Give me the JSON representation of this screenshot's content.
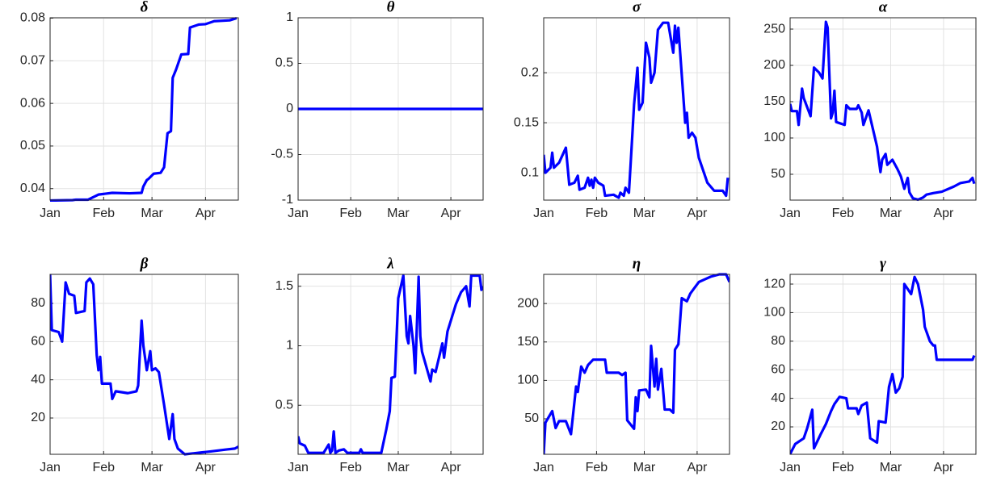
{
  "chart_data": [
    {
      "type": "line",
      "title": "δ",
      "color": "#0000ff",
      "grid": true,
      "xlim": [
        0,
        109
      ],
      "xticks": [
        {
          "value": 0,
          "label": "Jan"
        },
        {
          "value": 31,
          "label": "Feb"
        },
        {
          "value": 59,
          "label": "Mar"
        },
        {
          "value": 90,
          "label": "Apr"
        }
      ],
      "ylim": [
        0.0373,
        0.0801
      ],
      "yticks": [
        0.04,
        0.05,
        0.06,
        0.07,
        0.08
      ],
      "x": [
        0,
        13,
        15,
        22,
        25,
        28,
        32,
        36,
        46,
        53,
        54,
        56,
        57,
        60,
        64,
        66,
        68,
        70,
        71,
        73,
        76,
        80,
        81,
        86,
        90,
        95,
        100,
        104,
        108
      ],
      "values": [
        0.0372,
        0.0373,
        0.0374,
        0.0374,
        0.038,
        0.0386,
        0.0388,
        0.039,
        0.0389,
        0.039,
        0.0405,
        0.042,
        0.0423,
        0.0435,
        0.0437,
        0.045,
        0.053,
        0.0535,
        0.066,
        0.068,
        0.0715,
        0.0716,
        0.0778,
        0.0785,
        0.0786,
        0.0793,
        0.0794,
        0.0795,
        0.08
      ]
    },
    {
      "type": "line",
      "title": "θ",
      "color": "#0000ff",
      "grid": true,
      "xlim": [
        0,
        109
      ],
      "xticks": [
        {
          "value": 0,
          "label": "Jan"
        },
        {
          "value": 31,
          "label": "Feb"
        },
        {
          "value": 59,
          "label": "Mar"
        },
        {
          "value": 90,
          "label": "Apr"
        }
      ],
      "ylim": [
        -1,
        1
      ],
      "yticks": [
        -1,
        -0.5,
        0,
        0.5,
        1
      ],
      "x": [
        0,
        109
      ],
      "values": [
        0,
        0
      ]
    },
    {
      "type": "line",
      "title": "σ",
      "color": "#0000ff",
      "grid": true,
      "xlim": [
        0,
        109
      ],
      "xticks": [
        {
          "value": 0,
          "label": "Jan"
        },
        {
          "value": 31,
          "label": "Feb"
        },
        {
          "value": 59,
          "label": "Mar"
        },
        {
          "value": 90,
          "label": "Apr"
        }
      ],
      "ylim": [
        0.0726,
        0.255
      ],
      "yticks": [
        0.1,
        0.15,
        0.2
      ],
      "x": [
        0,
        1,
        4,
        5,
        6,
        9,
        13,
        15,
        18,
        20,
        21,
        24,
        26,
        27,
        28,
        29,
        30,
        32,
        35,
        36,
        41,
        44,
        45,
        47,
        48,
        50,
        52,
        53,
        55,
        56,
        58,
        60,
        62,
        63,
        65,
        67,
        70,
        73,
        74,
        76,
        77,
        78,
        79,
        83,
        84,
        85,
        87,
        89,
        91,
        94,
        96,
        100,
        105,
        107,
        108
      ],
      "values": [
        0.118,
        0.1,
        0.105,
        0.12,
        0.105,
        0.11,
        0.125,
        0.088,
        0.09,
        0.097,
        0.083,
        0.085,
        0.095,
        0.087,
        0.093,
        0.085,
        0.095,
        0.09,
        0.087,
        0.077,
        0.078,
        0.075,
        0.08,
        0.077,
        0.085,
        0.08,
        0.138,
        0.168,
        0.205,
        0.163,
        0.17,
        0.23,
        0.215,
        0.19,
        0.2,
        0.243,
        0.25,
        0.25,
        0.24,
        0.22,
        0.247,
        0.23,
        0.245,
        0.15,
        0.16,
        0.135,
        0.14,
        0.135,
        0.115,
        0.1,
        0.09,
        0.082,
        0.082,
        0.077,
        0.095
      ]
    },
    {
      "type": "line",
      "title": "α",
      "color": "#0000ff",
      "grid": true,
      "xlim": [
        0,
        109
      ],
      "xticks": [
        {
          "value": 0,
          "label": "Jan"
        },
        {
          "value": 31,
          "label": "Feb"
        },
        {
          "value": 59,
          "label": "Mar"
        },
        {
          "value": 90,
          "label": "Apr"
        }
      ],
      "ylim": [
        14.4,
        265.6
      ],
      "yticks": [
        50,
        100,
        150,
        200,
        250
      ],
      "x": [
        0,
        1,
        4,
        5,
        7,
        8,
        12,
        14,
        17,
        19,
        21,
        22,
        24,
        25,
        26,
        27,
        32,
        33,
        35,
        39,
        40,
        42,
        43,
        46,
        51,
        53,
        54,
        56,
        57,
        60,
        63,
        65,
        67,
        69,
        70,
        72,
        75,
        78,
        80,
        84,
        89,
        96,
        100,
        105,
        107,
        108
      ],
      "values": [
        147,
        137,
        137,
        118,
        168,
        155,
        130,
        197,
        190,
        182,
        260,
        252,
        127,
        135,
        165,
        122,
        118,
        145,
        140,
        140,
        145,
        135,
        118,
        138,
        88,
        53,
        70,
        78,
        63,
        70,
        57,
        47,
        30,
        45,
        25,
        17,
        15,
        18,
        22,
        24,
        26,
        33,
        38,
        40,
        45,
        37
      ]
    },
    {
      "type": "line",
      "title": "β",
      "color": "#0000ff",
      "grid": true,
      "xlim": [
        0,
        109
      ],
      "xticks": [
        {
          "value": 0,
          "label": "Jan"
        },
        {
          "value": 31,
          "label": "Feb"
        },
        {
          "value": 59,
          "label": "Mar"
        },
        {
          "value": 90,
          "label": "Apr"
        }
      ],
      "ylim": [
        1,
        95.2
      ],
      "yticks": [
        20,
        40,
        60,
        80
      ],
      "x": [
        0,
        1,
        5,
        7,
        9,
        11,
        14,
        15,
        20,
        21,
        23,
        25,
        27,
        28,
        29,
        30,
        35,
        36,
        38,
        45,
        50,
        51,
        53,
        54,
        56,
        58,
        59,
        61,
        63,
        66,
        69,
        71,
        72,
        74,
        78,
        83,
        88,
        93,
        102,
        107,
        109
      ],
      "values": [
        95,
        66,
        65,
        60,
        91,
        85,
        84,
        75,
        76,
        91,
        93,
        90,
        53,
        45,
        52,
        38,
        38,
        30,
        34,
        33,
        34,
        37,
        71,
        58,
        45,
        55,
        45,
        46,
        44,
        27,
        9,
        22,
        9,
        4,
        1,
        1.5,
        2,
        2.5,
        3.5,
        4,
        5
      ]
    },
    {
      "type": "line",
      "title": "λ",
      "color": "#0000ff",
      "grid": true,
      "xlim": [
        0,
        109
      ],
      "xticks": [
        {
          "value": 0,
          "label": "Jan"
        },
        {
          "value": 31,
          "label": "Feb"
        },
        {
          "value": 59,
          "label": "Mar"
        },
        {
          "value": 90,
          "label": "Apr"
        }
      ],
      "ylim": [
        0.088,
        1.6
      ],
      "yticks": [
        0.5,
        1,
        1.5
      ],
      "x": [
        0,
        1,
        4,
        6,
        15,
        18,
        19,
        20,
        21,
        22,
        24,
        27,
        29,
        36,
        37,
        38,
        49,
        52,
        54,
        55,
        57,
        59,
        62,
        64,
        65,
        66,
        68,
        69,
        71,
        72,
        73,
        78,
        79,
        81,
        85,
        86,
        88,
        93,
        96,
        99,
        101,
        102,
        107,
        108,
        109
      ],
      "values": [
        0.24,
        0.18,
        0.16,
        0.1,
        0.1,
        0.17,
        0.1,
        0.12,
        0.28,
        0.1,
        0.12,
        0.13,
        0.1,
        0.1,
        0.13,
        0.1,
        0.1,
        0.3,
        0.45,
        0.73,
        0.74,
        1.4,
        1.59,
        1.08,
        1.02,
        1.25,
        1.0,
        0.77,
        1.58,
        1.08,
        0.95,
        0.7,
        0.8,
        0.78,
        1.02,
        0.9,
        1.12,
        1.35,
        1.45,
        1.5,
        1.33,
        1.59,
        1.59,
        1.47,
        1.5
      ]
    },
    {
      "type": "line",
      "title": "η",
      "color": "#0000ff",
      "grid": true,
      "xlim": [
        0,
        109
      ],
      "xticks": [
        {
          "value": 0,
          "label": "Jan"
        },
        {
          "value": 31,
          "label": "Feb"
        },
        {
          "value": 59,
          "label": "Mar"
        },
        {
          "value": 90,
          "label": "Apr"
        }
      ],
      "ylim": [
        3.8,
        238
      ],
      "yticks": [
        50,
        100,
        150,
        200
      ],
      "x": [
        0,
        1,
        5,
        7,
        9,
        13,
        16,
        19,
        20,
        22,
        24,
        26,
        29,
        36,
        37,
        44,
        46,
        48,
        49,
        53,
        54,
        55,
        56,
        60,
        62,
        63,
        65,
        66,
        67,
        69,
        71,
        74,
        76,
        77,
        79,
        81,
        84,
        86,
        89,
        91,
        95,
        98,
        103,
        107,
        109
      ],
      "values": [
        4,
        45,
        60,
        38,
        47,
        47,
        30,
        92,
        85,
        118,
        110,
        120,
        127,
        127,
        110,
        110,
        107,
        110,
        48,
        37,
        78,
        60,
        87,
        88,
        78,
        145,
        92,
        128,
        88,
        115,
        62,
        62,
        58,
        140,
        147,
        207,
        203,
        213,
        222,
        228,
        232,
        235,
        238,
        238,
        228
      ]
    },
    {
      "type": "line",
      "title": "γ",
      "color": "#0000ff",
      "grid": true,
      "xlim": [
        0,
        109
      ],
      "xticks": [
        {
          "value": 0,
          "label": "Jan"
        },
        {
          "value": 31,
          "label": "Feb"
        },
        {
          "value": 59,
          "label": "Mar"
        },
        {
          "value": 90,
          "label": "Apr"
        }
      ],
      "ylim": [
        0.8,
        126.8
      ],
      "yticks": [
        20,
        40,
        60,
        80,
        100,
        120
      ],
      "x": [
        0,
        3,
        8,
        10,
        13,
        14,
        18,
        21,
        24,
        26,
        29,
        33,
        34,
        39,
        40,
        42,
        45,
        47,
        51,
        52,
        56,
        58,
        60,
        62,
        64,
        66,
        67,
        71,
        73,
        75,
        78,
        79,
        82,
        84,
        85,
        86,
        107,
        108
      ],
      "values": [
        1,
        8,
        12,
        19,
        32,
        5,
        15,
        22,
        31,
        36,
        41,
        40,
        33,
        33,
        29,
        35,
        37,
        12,
        9,
        24,
        23,
        48,
        57,
        44,
        47,
        55,
        120,
        113,
        125,
        120,
        102,
        90,
        80,
        77,
        77,
        67,
        67,
        70
      ]
    }
  ]
}
